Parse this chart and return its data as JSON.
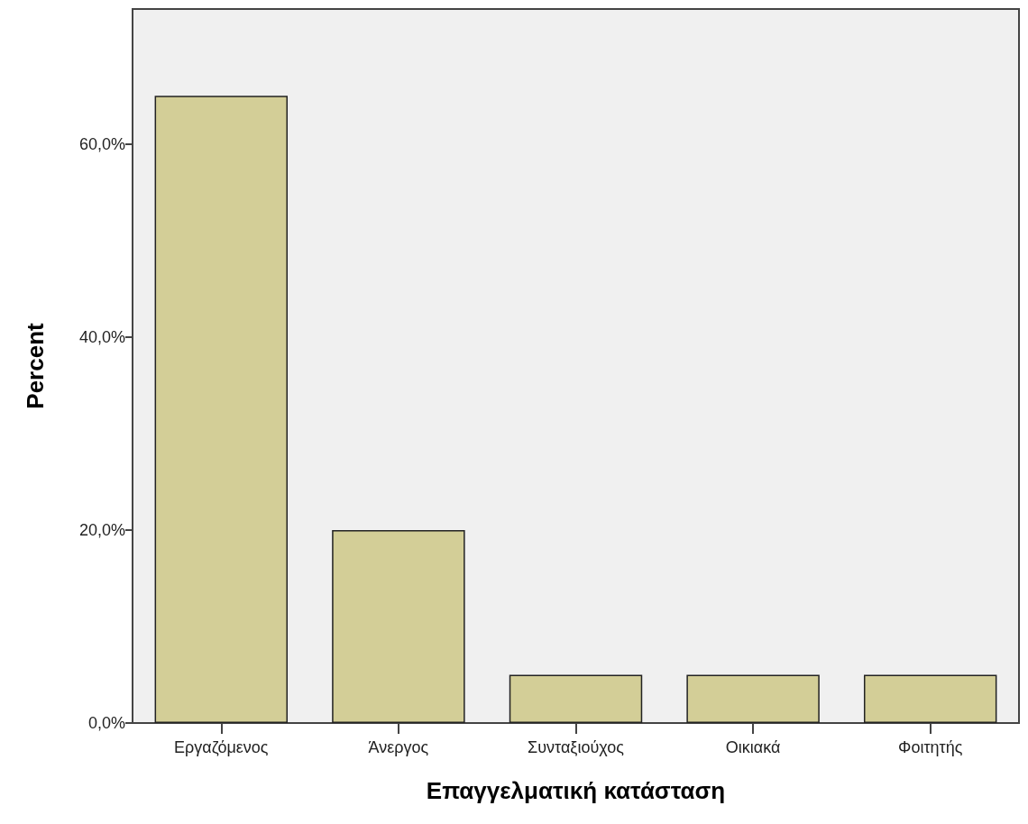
{
  "chart_data": {
    "type": "bar",
    "xlabel": "Επαγγελματική κατάσταση",
    "ylabel": "Percent",
    "categories": [
      "Εργαζόμενος",
      "Άνεργος",
      "Συνταξιούχος",
      "Οικιακά",
      "Φοιτητής"
    ],
    "values": [
      65,
      20,
      5,
      5,
      5
    ],
    "color": "#d3ce97",
    "ylim": [
      0,
      74
    ],
    "yticks": [
      {
        "value": 0,
        "label": "0,0%"
      },
      {
        "value": 20,
        "label": "20,0%"
      },
      {
        "value": 40,
        "label": "40,0%"
      },
      {
        "value": 60,
        "label": "60,0%"
      }
    ],
    "grid": false
  }
}
